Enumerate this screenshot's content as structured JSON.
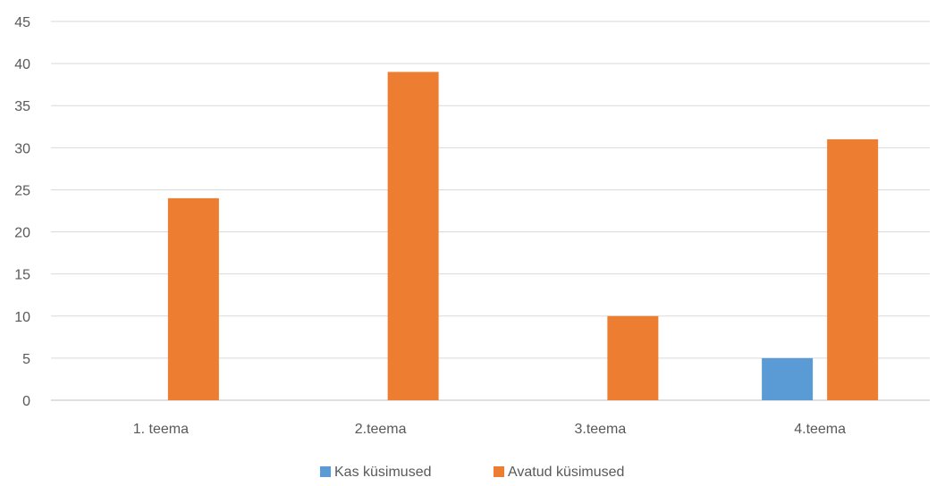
{
  "chart_data": {
    "type": "bar",
    "categories": [
      "1. teema",
      "2.teema",
      "3.teema",
      "4.teema"
    ],
    "series": [
      {
        "name": "Kas küsimused",
        "values": [
          0,
          0,
          0,
          5
        ],
        "color": "#5B9BD5"
      },
      {
        "name": "Avatud küsimused",
        "values": [
          24,
          39,
          10,
          31
        ],
        "color": "#ED7D31"
      }
    ],
    "ylim": [
      0,
      45
    ],
    "yticks": [
      0,
      5,
      10,
      15,
      20,
      25,
      30,
      35,
      40,
      45
    ],
    "grid": true,
    "legend": "bottom-center",
    "title": "",
    "xlabel": "",
    "ylabel": ""
  }
}
